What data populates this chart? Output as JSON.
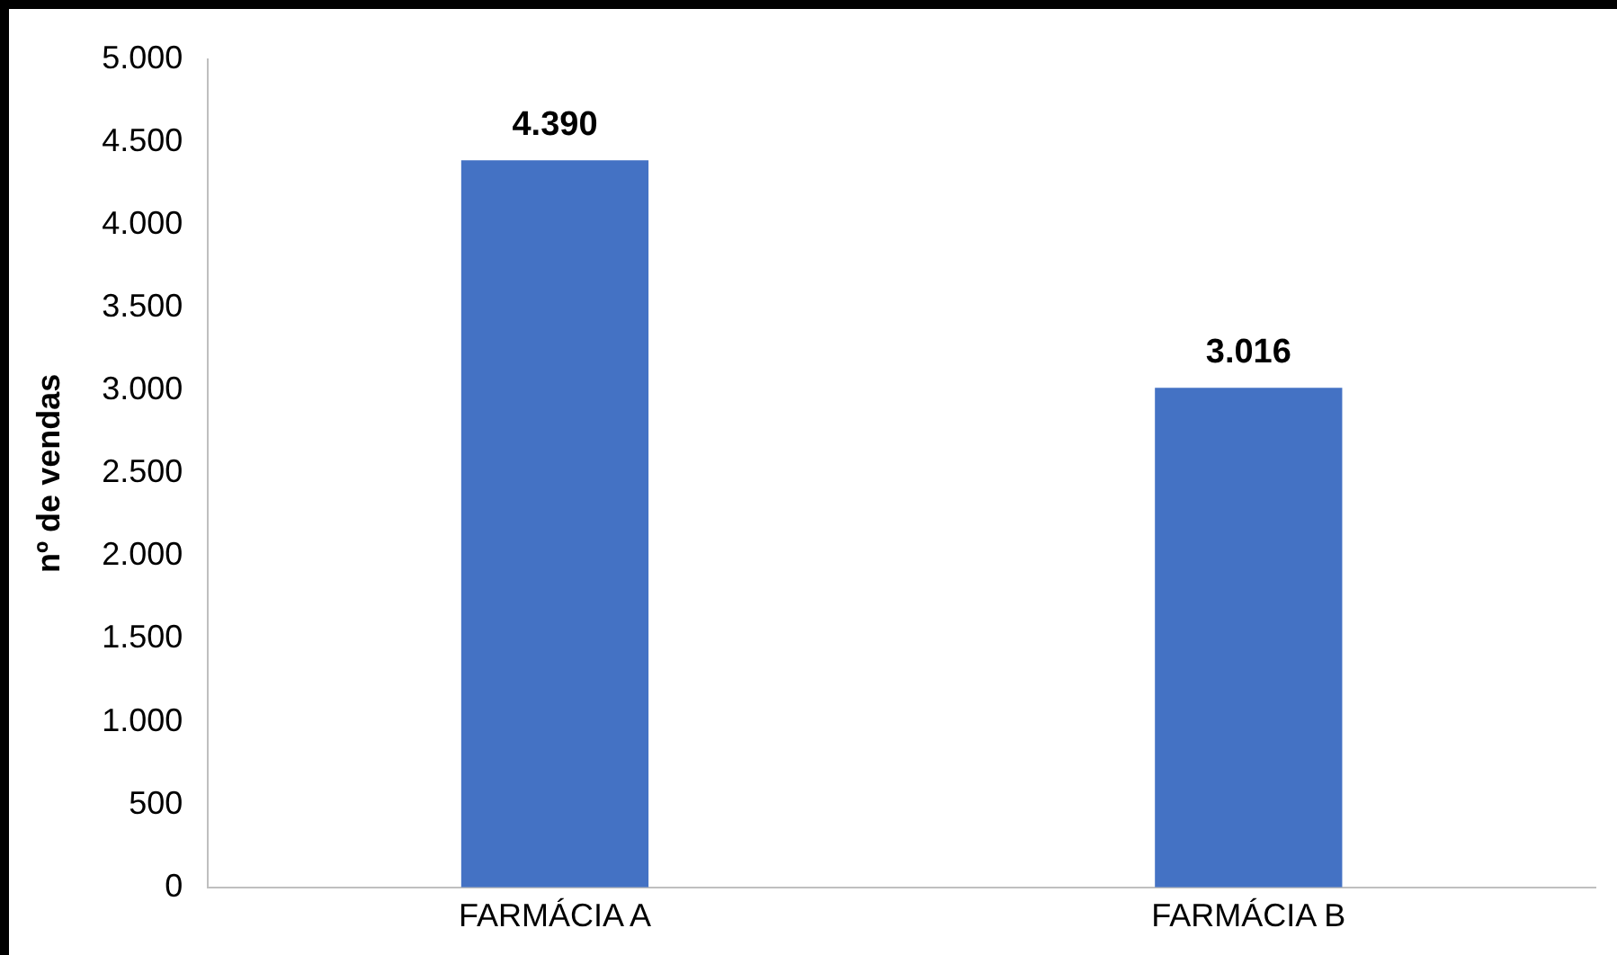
{
  "chart_data": {
    "type": "bar",
    "ylabel": "nº de vendas",
    "categories": [
      "FARMÁCIA A",
      "FARMÁCIA B"
    ],
    "values": [
      4390,
      3016
    ],
    "value_labels": [
      "4.390",
      "3.016"
    ],
    "color": "#4472c4",
    "ylim": [
      0,
      5000
    ],
    "yticks": [
      {
        "value": 0,
        "label": "0"
      },
      {
        "value": 500,
        "label": "500"
      },
      {
        "value": 1000,
        "label": "1.000"
      },
      {
        "value": 1500,
        "label": "1.500"
      },
      {
        "value": 2000,
        "label": "2.000"
      },
      {
        "value": 2500,
        "label": "2.500"
      },
      {
        "value": 3000,
        "label": "3.000"
      },
      {
        "value": 3500,
        "label": "3.500"
      },
      {
        "value": 4000,
        "label": "4.000"
      },
      {
        "value": 4500,
        "label": "4.500"
      },
      {
        "value": 5000,
        "label": "5.000"
      }
    ],
    "grid": false,
    "legend": false
  }
}
